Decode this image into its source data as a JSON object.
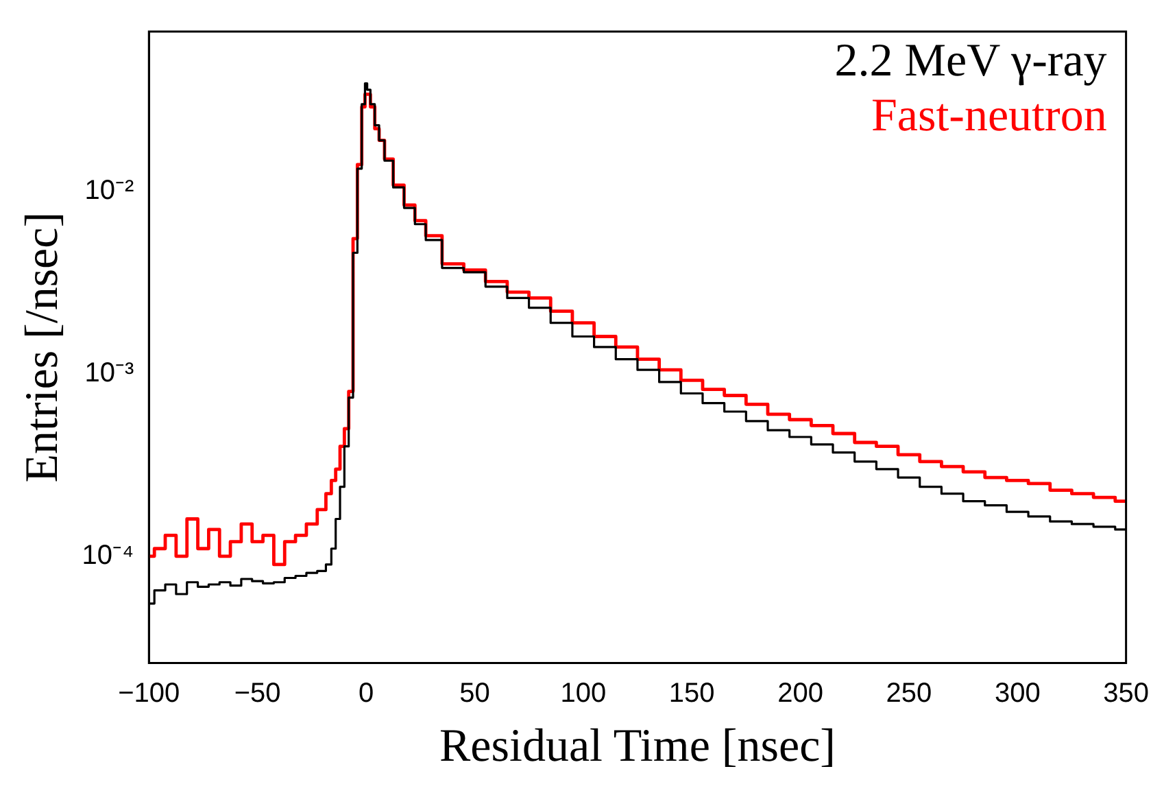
{
  "chart_data": {
    "type": "step",
    "xlabel": "Residual Time [nsec]",
    "ylabel": "Entries [/nsec]",
    "log": "y",
    "grid": false,
    "legend": "top right",
    "xlim": [
      -100,
      350
    ],
    "ylim": [
      2.6e-05,
      0.075
    ],
    "xticks": [
      {
        "value": -100,
        "label": "−100"
      },
      {
        "value": -50,
        "label": "−50"
      },
      0,
      50,
      100,
      150,
      200,
      250,
      300,
      350
    ],
    "yticks": [
      {
        "value": 0.0001,
        "label": "10⁻⁴"
      },
      {
        "value": 0.001,
        "label": "10⁻³"
      },
      {
        "value": 0.01,
        "label": "10⁻²"
      }
    ],
    "x": [
      -100,
      -95,
      -90,
      -85,
      -80,
      -75,
      -70,
      -65,
      -60,
      -55,
      -50,
      -45,
      -40,
      -35,
      -30,
      -25,
      -20,
      -17,
      -15,
      -13,
      -11,
      -9,
      -7,
      -5,
      -3,
      -1,
      0,
      1,
      3,
      5,
      7,
      10,
      15,
      20,
      25,
      30,
      40,
      50,
      60,
      70,
      80,
      90,
      100,
      110,
      120,
      130,
      140,
      150,
      160,
      170,
      180,
      190,
      200,
      210,
      220,
      230,
      240,
      250,
      260,
      270,
      280,
      290,
      300,
      310,
      320,
      330,
      340,
      350
    ],
    "series": [
      {
        "name": "2.2 MeV γ-ray",
        "color": "#000000",
        "values": [
          5.5e-05,
          6.5e-05,
          7e-05,
          6.2e-05,
          7.2e-05,
          6.8e-05,
          7e-05,
          7.2e-05,
          6.9e-05,
          7.5e-05,
          7.3e-05,
          7.1e-05,
          7.2e-05,
          7.6e-05,
          7.8e-05,
          8.1e-05,
          8.3e-05,
          9e-05,
          0.00011,
          0.00016,
          0.00024,
          0.0004,
          0.00074,
          0.0046,
          0.0133,
          0.03,
          0.039,
          0.036,
          0.03,
          0.023,
          0.019,
          0.0147,
          0.0105,
          0.0081,
          0.0066,
          0.0054,
          0.0038,
          0.0036,
          0.003,
          0.0026,
          0.0023,
          0.0019,
          0.0016,
          0.0014,
          0.0012,
          0.00105,
          0.0009,
          0.00078,
          0.00069,
          0.00062,
          0.00055,
          0.00049,
          0.00045,
          0.00041,
          0.00037,
          0.00033,
          0.0003,
          0.00027,
          0.00024,
          0.00022,
          0.0002,
          0.00019,
          0.000175,
          0.000165,
          0.000155,
          0.00015,
          0.000145,
          0.00014
        ]
      },
      {
        "name": "Fast-neutron",
        "color": "#ff0000",
        "values": [
          0.0001,
          0.00011,
          0.00013,
          0.0001,
          0.00016,
          0.00011,
          0.00014,
          0.0001,
          0.00012,
          0.00015,
          0.00012,
          0.00013,
          9e-05,
          0.00012,
          0.00013,
          0.00015,
          0.00018,
          0.00022,
          0.00026,
          0.0003,
          0.0004,
          0.0005,
          0.0008,
          0.0055,
          0.014,
          0.029,
          0.034,
          0.034,
          0.029,
          0.022,
          0.019,
          0.015,
          0.0108,
          0.0084,
          0.0069,
          0.0057,
          0.004,
          0.0037,
          0.0032,
          0.0028,
          0.0026,
          0.0022,
          0.0019,
          0.0016,
          0.0014,
          0.0012,
          0.00105,
          0.00092,
          0.00082,
          0.00076,
          0.00068,
          0.0006,
          0.00056,
          0.00052,
          0.00047,
          0.00042,
          0.0004,
          0.00036,
          0.00033,
          0.00031,
          0.00029,
          0.00027,
          0.00026,
          0.00025,
          0.00023,
          0.00022,
          0.00021,
          0.0002
        ]
      }
    ]
  }
}
